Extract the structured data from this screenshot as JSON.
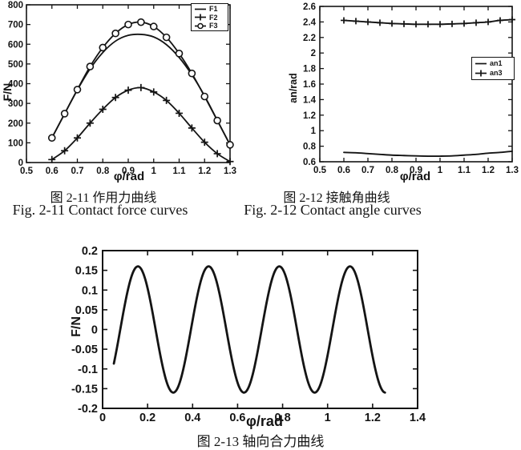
{
  "page": {
    "background": "#ffffff",
    "ink": "#141414"
  },
  "figures": [
    {
      "caption_cn": "图 2-11  作用力曲线",
      "caption_en": "Fig. 2-11 Contact force curves"
    },
    {
      "caption_cn": "图 2-12  接触角曲线",
      "caption_en": "Fig. 2-12 Contact angle curves"
    },
    {
      "caption_cn": "图 2-13 轴向合力曲线",
      "caption_en": ""
    }
  ],
  "chart_data": [
    {
      "type": "line",
      "title": "",
      "xlabel": "φ/rad",
      "ylabel": "F/N",
      "xlim": [
        0.5,
        1.3
      ],
      "ylim": [
        0,
        800
      ],
      "grid": false,
      "legend_position": "top-right",
      "xtick_values": [
        0.5,
        0.6,
        0.7,
        0.8,
        0.9,
        1.0,
        1.1,
        1.2,
        1.3
      ],
      "xtick_labels": [
        "0.5",
        "0.6",
        "0.7",
        "0.8",
        "0.9",
        "1",
        "1.1",
        "1.2",
        "1.3"
      ],
      "ytick_values": [
        0,
        100,
        200,
        300,
        400,
        500,
        600,
        700,
        800
      ],
      "ytick_labels": [
        "0",
        "100",
        "200",
        "300",
        "400",
        "500",
        "600",
        "700",
        "800"
      ],
      "x": [
        0.6,
        0.65,
        0.7,
        0.75,
        0.8,
        0.85,
        0.9,
        0.95,
        1.0,
        1.05,
        1.1,
        1.15,
        1.2,
        1.25,
        1.3
      ],
      "series": [
        {
          "name": "F1",
          "line": "solid",
          "marker": "none",
          "values": [
            125,
            247,
            368,
            475,
            558,
            616,
            645,
            650,
            637,
            598,
            533,
            445,
            338,
            214,
            90
          ]
        },
        {
          "name": "F2",
          "line": "solid",
          "marker": "plus",
          "values": [
            15,
            60,
            125,
            200,
            270,
            330,
            367,
            380,
            358,
            315,
            250,
            175,
            103,
            45,
            5
          ]
        },
        {
          "name": "F3",
          "line": "solid",
          "marker": "circle",
          "values": [
            125,
            248,
            370,
            487,
            583,
            655,
            700,
            712,
            690,
            635,
            553,
            452,
            335,
            213,
            90
          ]
        }
      ]
    },
    {
      "type": "line",
      "title": "",
      "xlabel": "φ/rad",
      "ylabel": "an/rad",
      "xlim": [
        0.5,
        1.3
      ],
      "ylim": [
        0.6,
        2.6
      ],
      "grid": false,
      "legend_position": "middle-right",
      "xtick_values": [
        0.5,
        0.6,
        0.7,
        0.8,
        0.9,
        1.0,
        1.1,
        1.2,
        1.3
      ],
      "xtick_labels": [
        "0.5",
        "0.6",
        "0.7",
        "0.8",
        "0.9",
        "1",
        "1.1",
        "1.2",
        "1.3"
      ],
      "ytick_values": [
        0.6,
        0.8,
        1.0,
        1.2,
        1.4,
        1.6,
        1.8,
        2.0,
        2.2,
        2.4,
        2.6
      ],
      "ytick_labels": [
        "0.6",
        "0.8",
        "1",
        "1.2",
        "1.4",
        "1.6",
        "1.8",
        "2",
        "2.2",
        "2.4",
        "2.6"
      ],
      "x": [
        0.6,
        0.65,
        0.7,
        0.75,
        0.8,
        0.85,
        0.9,
        0.95,
        1.0,
        1.05,
        1.1,
        1.15,
        1.2,
        1.25,
        1.3
      ],
      "series": [
        {
          "name": "an1",
          "line": "solid",
          "marker": "none",
          "values": [
            0.72,
            0.715,
            0.705,
            0.695,
            0.685,
            0.68,
            0.675,
            0.672,
            0.672,
            0.675,
            0.685,
            0.695,
            0.71,
            0.72,
            0.735
          ]
        },
        {
          "name": "an3",
          "line": "solid",
          "marker": "plus",
          "values": [
            2.42,
            2.41,
            2.4,
            2.39,
            2.38,
            2.375,
            2.37,
            2.37,
            2.37,
            2.375,
            2.38,
            2.39,
            2.4,
            2.42,
            2.43
          ]
        }
      ]
    },
    {
      "type": "line",
      "title": "",
      "xlabel": "φ/rad",
      "ylabel": "F/N",
      "xlim": [
        0,
        1.4
      ],
      "ylim": [
        -0.2,
        0.2
      ],
      "grid": false,
      "legend_position": "none",
      "xtick_values": [
        0,
        0.2,
        0.4,
        0.6,
        0.8,
        1.0,
        1.2,
        1.4
      ],
      "xtick_labels": [
        "0",
        "0.2",
        "0.4",
        "0.6",
        "0.8",
        "1",
        "1.2",
        "1.4"
      ],
      "ytick_values": [
        -0.2,
        -0.15,
        -0.1,
        -0.05,
        0,
        0.05,
        0.1,
        0.15,
        0.2
      ],
      "ytick_labels": [
        "-0.2",
        "-0.15",
        "-0.1",
        "-0.05",
        "0",
        "0.05",
        "0.1",
        "0.15",
        "0.2"
      ],
      "signal": {
        "name": "axial resultant force",
        "formula": "F = 0.16·sin(20φ − π/2)",
        "amplitude": 0.16,
        "angular_frequency": 20,
        "phase": -1.5707963,
        "x_start": 0.05,
        "x_end": 1.255,
        "peak_value": 0.16,
        "trough_value": -0.16,
        "peak_x": [
          0.157,
          0.471,
          0.785,
          1.1
        ],
        "trough_x": [
          0.314,
          0.628,
          0.942
        ]
      }
    }
  ]
}
